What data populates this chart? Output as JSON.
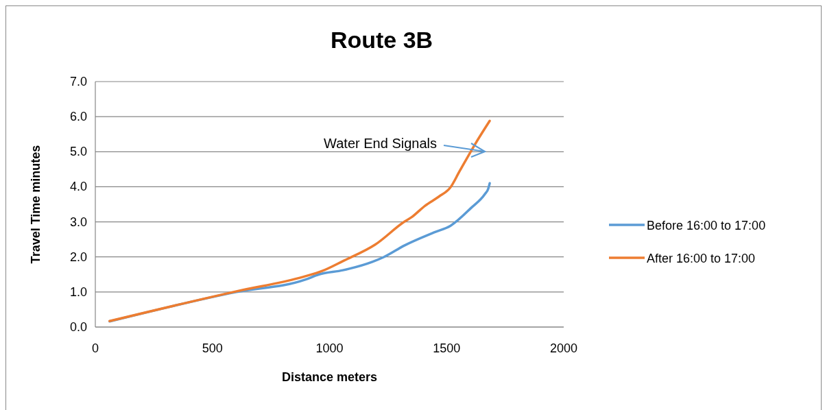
{
  "chart_data": {
    "type": "line",
    "title": "Route 3B",
    "xlabel": "Distance meters",
    "ylabel": "Travel Time minutes",
    "xlim": [
      0,
      2000
    ],
    "xticks": [
      0,
      500,
      1000,
      1500,
      2000
    ],
    "ylim": [
      0,
      7
    ],
    "yticks": [
      {
        "value": 0,
        "label": "0.0"
      },
      {
        "value": 1,
        "label": "1.0"
      },
      {
        "value": 2,
        "label": "2.0"
      },
      {
        "value": 3,
        "label": "3.0"
      },
      {
        "value": 4,
        "label": "4.0"
      },
      {
        "value": 5,
        "label": "5.0"
      },
      {
        "value": 6,
        "label": "6.0"
      },
      {
        "value": 7,
        "label": "7.0"
      }
    ],
    "grid": "y",
    "legend": "right",
    "marker": "none",
    "line_style": "solid",
    "annotations": [
      "Water End Signals"
    ],
    "series": [
      {
        "name": "Before 16:00 to 17:00",
        "color": "#5b9bd5",
        "x": [
          61,
          603,
          896,
          955,
          1057,
          1183,
          1233,
          1321,
          1447,
          1517,
          1605,
          1663,
          1678,
          1684
        ],
        "values": [
          0.16,
          1.0,
          1.35,
          1.5,
          1.62,
          1.86,
          2.0,
          2.33,
          2.7,
          2.89,
          3.4,
          3.79,
          3.95,
          4.1
        ]
      },
      {
        "name": "After 16:00 to 17:00",
        "color": "#ed7d31",
        "x": [
          61,
          603,
          887,
          969,
          1057,
          1195,
          1321,
          1350,
          1408,
          1467,
          1517,
          1555,
          1622,
          1684
        ],
        "values": [
          0.17,
          1.02,
          1.43,
          1.6,
          1.88,
          2.35,
          3.01,
          3.13,
          3.46,
          3.72,
          3.99,
          4.44,
          5.22,
          5.88
        ]
      }
    ]
  }
}
